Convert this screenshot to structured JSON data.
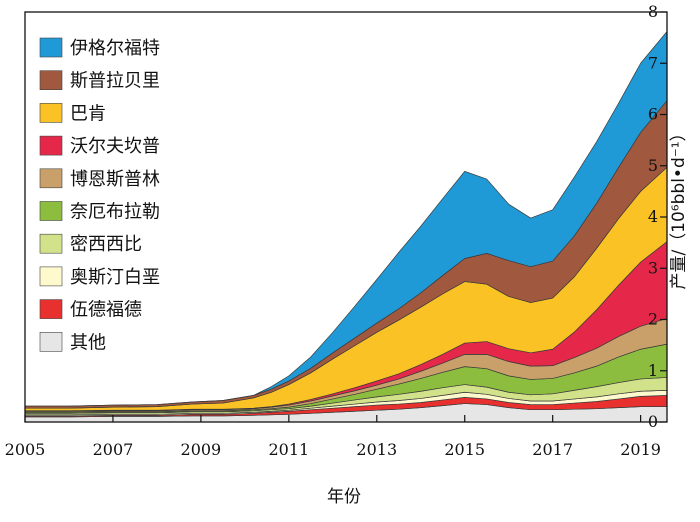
{
  "chart_data": {
    "type": "area",
    "stacked": true,
    "xlabel": "年份",
    "ylabel": "产量/（10⁶bbl•d⁻¹）",
    "xlim": [
      2005,
      2019.6
    ],
    "ylim": [
      0,
      8
    ],
    "x_ticks": [
      2005,
      2007,
      2009,
      2011,
      2013,
      2015,
      2017,
      2019
    ],
    "y_ticks": [
      0,
      1,
      2,
      3,
      4,
      5,
      6,
      7,
      8
    ],
    "legend_position": "top-left",
    "x": [
      2005,
      2006,
      2007,
      2008,
      2008.8,
      2009.5,
      2010.2,
      2010.6,
      2011,
      2011.5,
      2012,
      2012.5,
      2013,
      2013.5,
      2014,
      2014.5,
      2015,
      2015.5,
      2016,
      2016.5,
      2017,
      2017.5,
      2018,
      2018.5,
      2019,
      2019.6
    ],
    "series": [
      {
        "name": "其他",
        "color": "#e6e6e6",
        "values": [
          0.1,
          0.1,
          0.11,
          0.11,
          0.12,
          0.12,
          0.13,
          0.14,
          0.15,
          0.17,
          0.19,
          0.21,
          0.23,
          0.25,
          0.28,
          0.32,
          0.36,
          0.34,
          0.28,
          0.24,
          0.24,
          0.25,
          0.26,
          0.28,
          0.3,
          0.3
        ]
      },
      {
        "name": "伍德福德",
        "color": "#e8312f",
        "values": [
          0.02,
          0.02,
          0.02,
          0.02,
          0.03,
          0.03,
          0.04,
          0.05,
          0.06,
          0.07,
          0.08,
          0.09,
          0.1,
          0.1,
          0.1,
          0.11,
          0.12,
          0.11,
          0.1,
          0.1,
          0.1,
          0.12,
          0.14,
          0.17,
          0.2,
          0.22
        ]
      },
      {
        "name": "奥斯汀白垩",
        "color": "#fffacd",
        "values": [
          0.02,
          0.02,
          0.02,
          0.02,
          0.02,
          0.02,
          0.02,
          0.02,
          0.02,
          0.03,
          0.04,
          0.05,
          0.06,
          0.07,
          0.08,
          0.09,
          0.1,
          0.09,
          0.08,
          0.07,
          0.07,
          0.08,
          0.09,
          0.1,
          0.1,
          0.1
        ]
      },
      {
        "name": "密西西比",
        "color": "#d2e28a",
        "values": [
          0.03,
          0.03,
          0.03,
          0.03,
          0.03,
          0.03,
          0.03,
          0.03,
          0.03,
          0.04,
          0.06,
          0.08,
          0.1,
          0.12,
          0.14,
          0.15,
          0.15,
          0.14,
          0.12,
          0.12,
          0.14,
          0.17,
          0.2,
          0.22,
          0.24,
          0.25
        ]
      },
      {
        "name": "奈厄布拉勒",
        "color": "#8cbd3f",
        "values": [
          0.02,
          0.02,
          0.02,
          0.02,
          0.02,
          0.02,
          0.02,
          0.02,
          0.03,
          0.05,
          0.08,
          0.11,
          0.15,
          0.2,
          0.25,
          0.3,
          0.35,
          0.36,
          0.32,
          0.3,
          0.3,
          0.34,
          0.4,
          0.5,
          0.58,
          0.65
        ]
      },
      {
        "name": "博恩斯普林",
        "color": "#c9a06a",
        "values": [
          0.02,
          0.02,
          0.02,
          0.02,
          0.02,
          0.02,
          0.02,
          0.03,
          0.04,
          0.05,
          0.06,
          0.07,
          0.08,
          0.1,
          0.14,
          0.18,
          0.24,
          0.28,
          0.28,
          0.26,
          0.25,
          0.3,
          0.35,
          0.4,
          0.45,
          0.5
        ]
      },
      {
        "name": "沃尔夫坎普",
        "color": "#e5284a",
        "values": [
          0.01,
          0.01,
          0.01,
          0.01,
          0.01,
          0.01,
          0.01,
          0.01,
          0.02,
          0.03,
          0.04,
          0.06,
          0.08,
          0.1,
          0.13,
          0.17,
          0.22,
          0.25,
          0.25,
          0.26,
          0.32,
          0.5,
          0.75,
          1.0,
          1.25,
          1.5
        ]
      },
      {
        "name": "巴肯",
        "color": "#fbc226",
        "values": [
          0.05,
          0.05,
          0.06,
          0.07,
          0.1,
          0.12,
          0.2,
          0.28,
          0.38,
          0.52,
          0.68,
          0.82,
          0.95,
          1.05,
          1.12,
          1.18,
          1.2,
          1.12,
          1.02,
          0.98,
          1.0,
          1.08,
          1.2,
          1.3,
          1.38,
          1.45
        ]
      },
      {
        "name": "斯普拉贝里",
        "color": "#a0583f",
        "values": [
          0.04,
          0.04,
          0.04,
          0.04,
          0.04,
          0.05,
          0.05,
          0.06,
          0.07,
          0.09,
          0.12,
          0.15,
          0.18,
          0.22,
          0.28,
          0.36,
          0.45,
          0.6,
          0.7,
          0.7,
          0.72,
          0.8,
          0.88,
          1.0,
          1.15,
          1.3
        ]
      },
      {
        "name": "伊格尔福特",
        "color": "#1f9ad6",
        "values": [
          0.0,
          0.0,
          0.0,
          0.0,
          0.0,
          0.0,
          0.0,
          0.05,
          0.1,
          0.22,
          0.4,
          0.62,
          0.85,
          1.1,
          1.3,
          1.5,
          1.7,
          1.45,
          1.1,
          0.95,
          1.0,
          1.15,
          1.2,
          1.25,
          1.35,
          1.35
        ]
      }
    ]
  }
}
